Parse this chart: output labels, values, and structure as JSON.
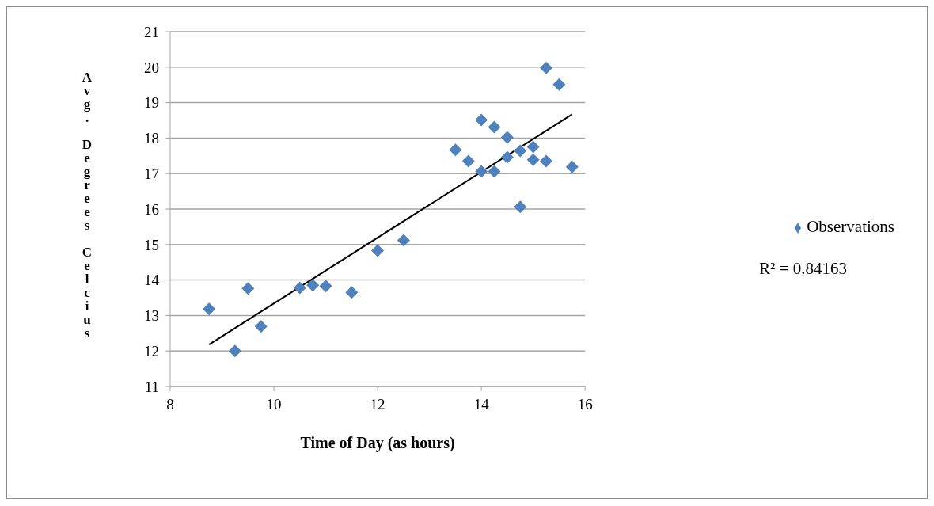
{
  "chart_data": {
    "type": "scatter",
    "xlabel": "Time of Day (as hours)",
    "ylabel": "Avg. Degrees Celcius",
    "xlim": [
      8,
      16
    ],
    "xticks": [
      8,
      10,
      12,
      14,
      16
    ],
    "ylim": [
      11,
      21
    ],
    "yticks": [
      11,
      12,
      13,
      14,
      15,
      16,
      17,
      18,
      19,
      20,
      21
    ],
    "grid": "y",
    "legend": "right",
    "annotations": [
      "R² = 0.84163"
    ],
    "series": [
      {
        "name": "Observations",
        "color": "#4f81bd",
        "marker": "diamond",
        "x": [
          8.75,
          9.25,
          9.5,
          9.75,
          10.5,
          10.75,
          11,
          11.5,
          12,
          12.5,
          13.5,
          13.75,
          14,
          14,
          14.25,
          14.25,
          14.5,
          14.5,
          14.75,
          14.75,
          15,
          15,
          15.25,
          15.25,
          15.5,
          15.75
        ],
        "values": [
          13.18,
          12.0,
          13.76,
          12.69,
          13.78,
          13.85,
          13.83,
          13.65,
          14.83,
          15.12,
          17.67,
          17.35,
          18.51,
          17.06,
          18.31,
          17.06,
          18.02,
          17.46,
          17.64,
          16.06,
          17.75,
          17.39,
          17.35,
          19.98,
          19.51,
          17.19
        ]
      },
      {
        "type": "line",
        "color": "#000000",
        "line_style": "solid",
        "marker": "none",
        "x": [
          8.75,
          15.75
        ],
        "values": [
          12.18,
          18.67
        ]
      }
    ]
  }
}
